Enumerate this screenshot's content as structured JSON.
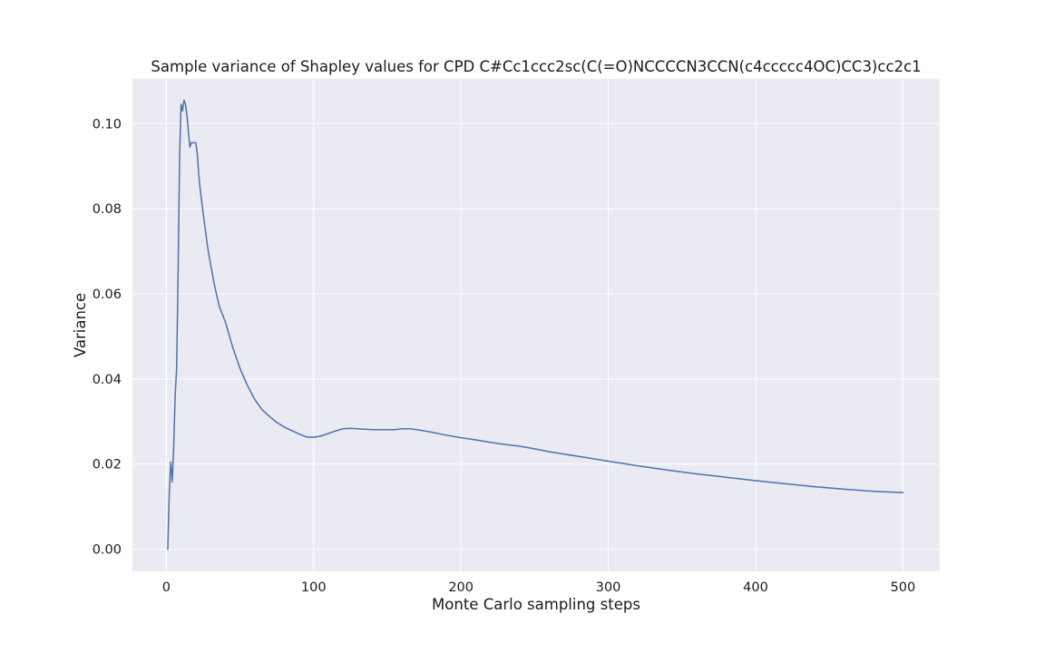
{
  "chart_data": {
    "type": "line",
    "title": "Sample variance of Shapley values for CPD C#Cc1ccc2sc(C(=O)NCCCCN3CCN(c4ccccc4OC)CC3)cc2c1",
    "xlabel": "Monte Carlo sampling steps",
    "ylabel": "Variance",
    "xlim": [
      -23,
      525
    ],
    "ylim": [
      -0.0052,
      0.1105
    ],
    "xticks": [
      0,
      100,
      200,
      300,
      400,
      500
    ],
    "xtick_labels": [
      "0",
      "100",
      "200",
      "300",
      "400",
      "500"
    ],
    "yticks": [
      0.0,
      0.02,
      0.04,
      0.06,
      0.08,
      0.1
    ],
    "ytick_labels": [
      "0.00",
      "0.02",
      "0.04",
      "0.06",
      "0.08",
      "0.10"
    ],
    "grid": true,
    "series": [
      {
        "color": "#4c72b0",
        "x": [
          1,
          2,
          3,
          4,
          5,
          6,
          7,
          8,
          9,
          10,
          11,
          12,
          13,
          14,
          15,
          16,
          17,
          18,
          19,
          20,
          21,
          22,
          23,
          25,
          28,
          30,
          33,
          36,
          40,
          45,
          50,
          55,
          60,
          65,
          70,
          75,
          80,
          85,
          90,
          95,
          100,
          105,
          110,
          115,
          120,
          125,
          130,
          140,
          150,
          155,
          160,
          165,
          170,
          180,
          190,
          200,
          210,
          220,
          230,
          240,
          250,
          260,
          280,
          300,
          320,
          340,
          360,
          380,
          400,
          420,
          440,
          460,
          480,
          500
        ],
        "y": [
          0.0,
          0.013,
          0.0205,
          0.0158,
          0.024,
          0.036,
          0.0425,
          0.065,
          0.092,
          0.1045,
          0.103,
          0.1055,
          0.1045,
          0.102,
          0.098,
          0.0945,
          0.0955,
          0.0955,
          0.0955,
          0.0955,
          0.093,
          0.088,
          0.0845,
          0.079,
          0.071,
          0.067,
          0.0615,
          0.057,
          0.0535,
          0.0475,
          0.0425,
          0.0385,
          0.0352,
          0.0328,
          0.0312,
          0.0298,
          0.0287,
          0.0279,
          0.0271,
          0.0264,
          0.0263,
          0.0266,
          0.0272,
          0.0278,
          0.0283,
          0.0284,
          0.0283,
          0.0281,
          0.0281,
          0.0281,
          0.0283,
          0.0283,
          0.0281,
          0.0275,
          0.0268,
          0.0262,
          0.0257,
          0.0251,
          0.0246,
          0.0242,
          0.0236,
          0.0229,
          0.0218,
          0.0207,
          0.0196,
          0.0186,
          0.0177,
          0.0169,
          0.0161,
          0.0154,
          0.0147,
          0.0141,
          0.0136,
          0.0133
        ]
      }
    ]
  }
}
